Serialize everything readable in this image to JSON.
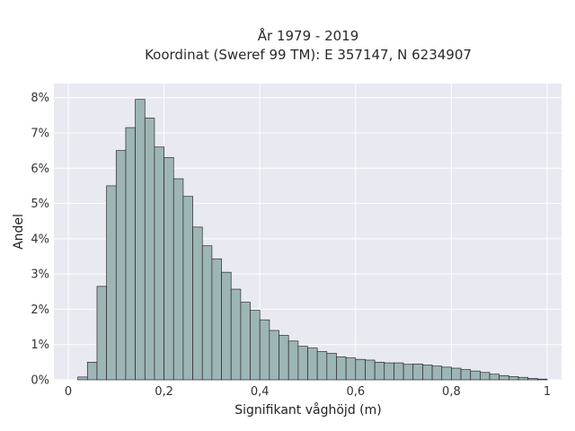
{
  "chart_data": {
    "type": "bar",
    "title": "År 1979 - 2019",
    "subtitle": "Koordinat (Sweref 99 TM): E 357147, N 6234907",
    "xlabel": "Signifikant våghöjd (m)",
    "ylabel": "Andel",
    "xlim": [
      -0.03,
      1.03
    ],
    "ylim": [
      0,
      8.4
    ],
    "x_ticks": [
      0,
      0.2,
      0.4,
      0.6,
      0.8,
      1.0
    ],
    "x_tick_labels": [
      "0",
      "0,2",
      "0,4",
      "0,6",
      "0,8",
      "1"
    ],
    "y_ticks": [
      0,
      1,
      2,
      3,
      4,
      5,
      6,
      7,
      8
    ],
    "y_tick_labels": [
      "0%",
      "1%",
      "2%",
      "3%",
      "4%",
      "5%",
      "6%",
      "7%",
      "8%"
    ],
    "grid": true,
    "bin_width": 0.02,
    "bin_start": 0.0,
    "values": [
      0.0,
      0.08,
      0.5,
      2.65,
      5.5,
      6.5,
      7.15,
      7.95,
      7.42,
      6.6,
      6.3,
      5.7,
      5.2,
      4.33,
      3.8,
      3.43,
      3.05,
      2.57,
      2.2,
      1.97,
      1.7,
      1.4,
      1.26,
      1.1,
      0.95,
      0.9,
      0.8,
      0.75,
      0.65,
      0.62,
      0.58,
      0.56,
      0.5,
      0.48,
      0.48,
      0.44,
      0.45,
      0.42,
      0.39,
      0.36,
      0.33,
      0.29,
      0.25,
      0.21,
      0.16,
      0.12,
      0.09,
      0.07,
      0.04,
      0.02
    ]
  },
  "colors": {
    "plot_background": "#e9e9f1",
    "page_background": "#ffffff",
    "bar_fill": "#9db5b5",
    "bar_edge": "#2b2b2b",
    "grid": "#ffffff"
  }
}
